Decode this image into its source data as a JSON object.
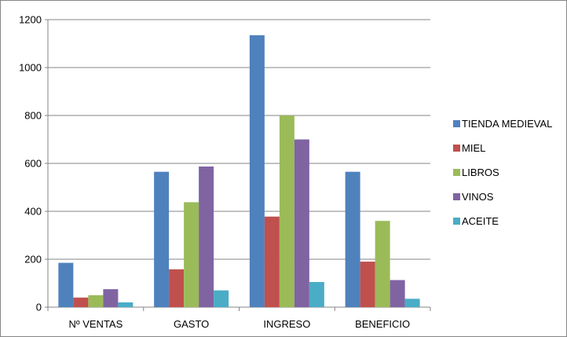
{
  "chart_data": {
    "type": "bar",
    "categories": [
      "Nº VENTAS",
      "GASTO",
      "INGRESO",
      "BENEFICIO"
    ],
    "series": [
      {
        "name": "TIENDA MEDIEVAL",
        "color": "#4f81bd",
        "values": [
          185,
          565,
          1135,
          565
        ]
      },
      {
        "name": "MIEL",
        "color": "#c0504d",
        "values": [
          40,
          158,
          378,
          190
        ]
      },
      {
        "name": "LIBROS",
        "color": "#9bbb59",
        "values": [
          50,
          438,
          800,
          360
        ]
      },
      {
        "name": "VINOS",
        "color": "#8064a2",
        "values": [
          75,
          587,
          700,
          113
        ]
      },
      {
        "name": "ACEITE",
        "color": "#4bacc6",
        "values": [
          20,
          70,
          105,
          35
        ]
      }
    ],
    "yticks": [
      0,
      200,
      400,
      600,
      800,
      1000,
      1200
    ],
    "ylim": [
      0,
      1200
    ],
    "grid": true,
    "legend_position": "right"
  }
}
